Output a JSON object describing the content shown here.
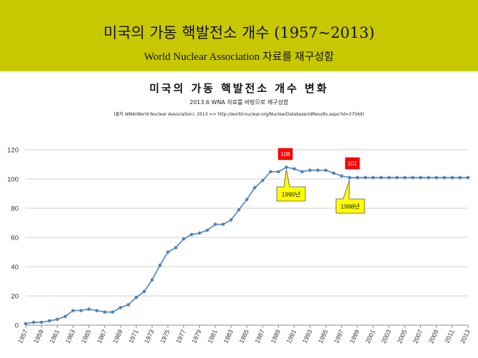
{
  "header": {
    "title": "미국의 가동 핵발전소 개수 (1957~2013)",
    "subtitle": "World Nuclear Association 자료를 재구성함"
  },
  "colors": {
    "header_bg": "#c8c800",
    "line": "#4f81bd",
    "callout_fill": "#ffff00",
    "flag_fill": "#ff0000"
  },
  "chart_data": {
    "type": "line",
    "title": "미국의 가동 핵발전소 개수 변화",
    "subtitle": "2013.6 WNA 자료를 바탕으로 재구성함",
    "source": "(출처 WNA(World Nuclear Association), 2013 => http://world-nuclear.org/NuclearDatabase/rdResults.aspx?id=27569)",
    "xlabel": "",
    "ylabel": "",
    "ylim": [
      0,
      120
    ],
    "yticks": [
      0,
      20,
      40,
      60,
      80,
      100,
      120
    ],
    "grid": true,
    "legend": "none",
    "x": [
      1957,
      1958,
      1959,
      1960,
      1961,
      1962,
      1963,
      1964,
      1965,
      1966,
      1967,
      1968,
      1969,
      1970,
      1971,
      1972,
      1973,
      1974,
      1975,
      1976,
      1977,
      1978,
      1979,
      1980,
      1981,
      1982,
      1983,
      1984,
      1985,
      1986,
      1987,
      1988,
      1989,
      1990,
      1991,
      1992,
      1993,
      1994,
      1995,
      1996,
      1997,
      1998,
      1999,
      2000,
      2001,
      2002,
      2003,
      2004,
      2005,
      2006,
      2007,
      2008,
      2009,
      2010,
      2011,
      2012,
      2013
    ],
    "xtick_labels": [
      "1957",
      "1959",
      "1961",
      "1963",
      "1965",
      "1967",
      "1969",
      "1971",
      "1973",
      "1975",
      "1977",
      "1979",
      "1981",
      "1983",
      "1985",
      "1987",
      "1989",
      "1991",
      "1993",
      "1995",
      "1997",
      "1999",
      "2001",
      "2003",
      "2005",
      "2007",
      "2009",
      "2011",
      "2013"
    ],
    "series": [
      {
        "values": [
          1,
          2,
          2,
          3,
          4,
          6,
          10,
          10,
          11,
          10,
          9,
          9,
          12,
          14,
          19,
          23,
          31,
          41,
          50,
          53,
          59,
          62,
          63,
          65,
          69,
          69,
          72,
          79,
          86,
          94,
          99,
          105,
          105,
          108,
          107,
          105,
          106,
          106,
          106,
          104,
          102,
          101,
          101,
          101,
          101,
          101,
          101,
          101,
          101,
          101,
          101,
          101,
          101,
          101,
          101,
          101,
          101
        ]
      }
    ],
    "annotations": [
      {
        "flag": "108",
        "callout": "1990년",
        "year": 1990,
        "value": 108
      },
      {
        "flag": "101",
        "callout": "1998년",
        "year": 1998,
        "value": 101
      }
    ]
  }
}
